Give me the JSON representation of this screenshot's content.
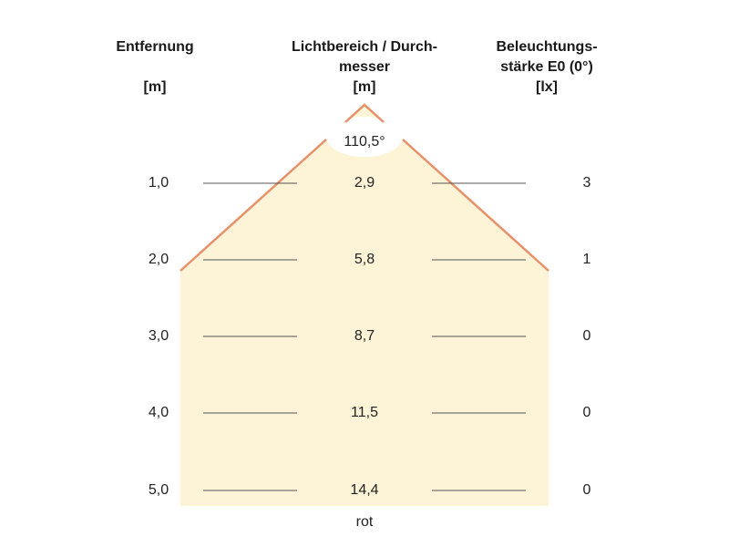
{
  "headers": {
    "distance": {
      "title": "Entfernung",
      "unit": "[m]"
    },
    "diameter": {
      "title_line1": "Lichtbereich / Durch-",
      "title_line2": "messer",
      "unit": "[m]"
    },
    "illuminance": {
      "title_line1": "Beleuchtungs-",
      "title_line2": "stärke E0 (0°)",
      "unit": "[lx]"
    }
  },
  "beam_angle": "110,5°",
  "rows": [
    {
      "distance": "1,0",
      "diameter": "2,9",
      "lux": "3"
    },
    {
      "distance": "2,0",
      "diameter": "5,8",
      "lux": "1"
    },
    {
      "distance": "3,0",
      "diameter": "8,7",
      "lux": "0"
    },
    {
      "distance": "4,0",
      "diameter": "11,5",
      "lux": "0"
    },
    {
      "distance": "5,0",
      "diameter": "14,4",
      "lux": "0"
    }
  ],
  "color_label": "rot",
  "colors": {
    "beam_fill": "#fdf3d6",
    "beam_edge": "#e8906a",
    "rule": "#555555"
  }
}
